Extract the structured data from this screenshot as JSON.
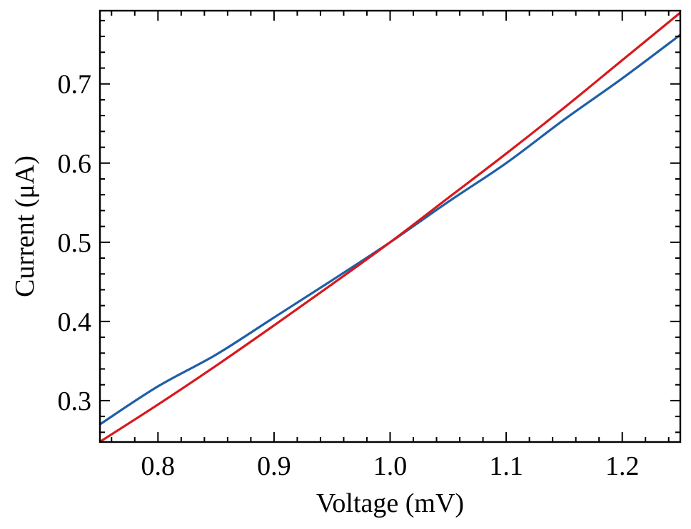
{
  "chart_data": {
    "type": "line",
    "xlabel": "Voltage (mV)",
    "ylabel": "Current (μA)",
    "xlim": [
      0.75,
      1.25
    ],
    "ylim": [
      0.2477,
      0.7925
    ],
    "x_ticks": [
      0.8,
      0.9,
      1.0,
      1.1,
      1.2
    ],
    "x_tick_labels": [
      "0.8",
      "0.9",
      "1.0",
      "1.1",
      "1.2"
    ],
    "y_ticks": [
      0.3,
      0.4,
      0.5,
      0.6,
      0.7
    ],
    "y_tick_labels": [
      "0.3",
      "0.4",
      "0.5",
      "0.6",
      "0.7"
    ],
    "grid": false,
    "series": [
      {
        "color": "#1f5fa6",
        "x": [
          0.75,
          0.8,
          0.85,
          0.9,
          0.95,
          1.0,
          1.05,
          1.1,
          1.15,
          1.2,
          1.25
        ],
        "y": [
          0.27,
          0.318,
          0.358,
          0.405,
          0.452,
          0.5,
          0.551,
          0.6,
          0.655,
          0.707,
          0.762
        ]
      },
      {
        "color": "#d7191c",
        "x": [
          0.75,
          0.8,
          0.85,
          0.9,
          0.95,
          1.0,
          1.05,
          1.1,
          1.15,
          1.2,
          1.25
        ],
        "y": [
          0.248,
          0.295,
          0.344,
          0.395,
          0.447,
          0.5,
          0.556,
          0.612,
          0.67,
          0.73,
          0.79
        ]
      }
    ]
  }
}
